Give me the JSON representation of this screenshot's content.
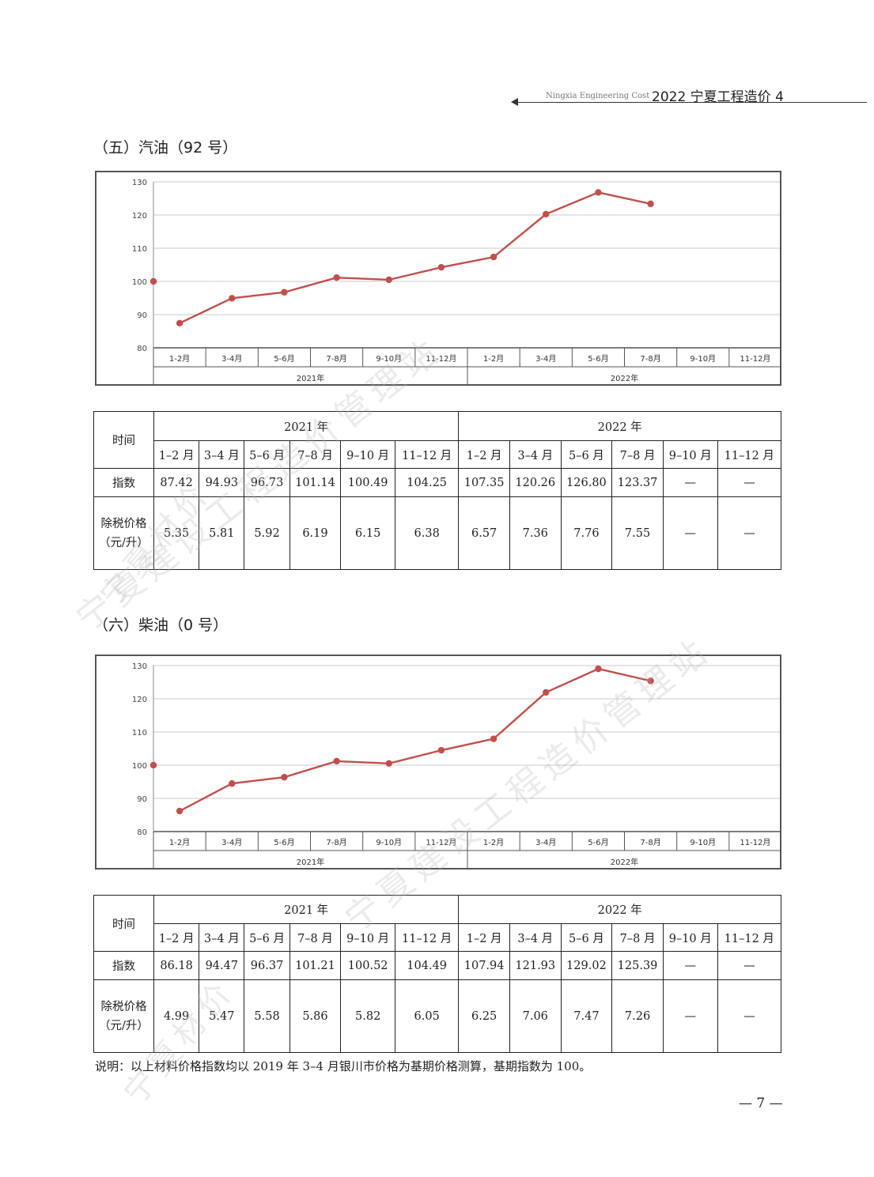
{
  "header": {
    "en": "Ningxia Engineering Cost",
    "cn": "2022 宁夏工程造价 4"
  },
  "sections": [
    {
      "title": "（五）汽油（92 号）",
      "chart_data": {
        "type": "line",
        "categories": [
          "1-2月",
          "3-4月",
          "5-6月",
          "7-8月",
          "9-10月",
          "11-12月",
          "1-2月",
          "3-4月",
          "5-6月",
          "7-8月",
          "9-10月",
          "11-12月"
        ],
        "groups": [
          "2021年",
          "2022年"
        ],
        "baseline": 100,
        "series": [
          {
            "values": [
              87.42,
              94.93,
              96.73,
              101.14,
              100.49,
              104.25,
              107.35,
              120.26,
              126.8,
              123.37,
              null,
              null
            ]
          }
        ],
        "ylim": [
          80,
          130
        ],
        "yticks": [
          80,
          90,
          100,
          110,
          120,
          130
        ],
        "color": "#c0504d"
      },
      "table": {
        "label_time": "时间",
        "label_index": "指数",
        "label_price": "除税价格（元/升）",
        "years": [
          "2021 年",
          "2022 年"
        ],
        "months": [
          "1–2 月",
          "3–4 月",
          "5–6 月",
          "7–8 月",
          "9–10 月",
          "11–12 月",
          "1–2 月",
          "3–4 月",
          "5–6 月",
          "7–8 月",
          "9–10 月",
          "11–12 月"
        ],
        "index": [
          "87.42",
          "94.93",
          "96.73",
          "101.14",
          "100.49",
          "104.25",
          "107.35",
          "120.26",
          "126.80",
          "123.37",
          "—",
          "—"
        ],
        "price": [
          "5.35",
          "5.81",
          "5.92",
          "6.19",
          "6.15",
          "6.38",
          "6.57",
          "7.36",
          "7.76",
          "7.55",
          "—",
          "—"
        ]
      }
    },
    {
      "title": "（六）柴油（0 号）",
      "chart_data": {
        "type": "line",
        "categories": [
          "1-2月",
          "3-4月",
          "5-6月",
          "7-8月",
          "9-10月",
          "11-12月",
          "1-2月",
          "3-4月",
          "5-6月",
          "7-8月",
          "9-10月",
          "11-12月"
        ],
        "groups": [
          "2021年",
          "2022年"
        ],
        "baseline": 100,
        "series": [
          {
            "values": [
              86.18,
              94.47,
              96.37,
              101.21,
              100.52,
              104.49,
              107.94,
              121.93,
              129.02,
              125.39,
              null,
              null
            ]
          }
        ],
        "ylim": [
          80,
          130
        ],
        "yticks": [
          80,
          90,
          100,
          110,
          120,
          130
        ],
        "color": "#c0504d"
      },
      "table": {
        "label_time": "时间",
        "label_index": "指数",
        "label_price": "除税价格（元/升）",
        "years": [
          "2021 年",
          "2022 年"
        ],
        "months": [
          "1–2 月",
          "3–4 月",
          "5–6 月",
          "7–8 月",
          "9–10 月",
          "11–12 月",
          "1–2 月",
          "3–4 月",
          "5–6 月",
          "7–8 月",
          "9–10 月",
          "11–12 月"
        ],
        "index": [
          "86.18",
          "94.47",
          "96.37",
          "101.21",
          "100.52",
          "104.49",
          "107.94",
          "121.93",
          "129.02",
          "125.39",
          "—",
          "—"
        ],
        "price": [
          "4.99",
          "5.47",
          "5.58",
          "5.86",
          "5.82",
          "6.05",
          "6.25",
          "7.06",
          "7.47",
          "7.26",
          "—",
          "—"
        ]
      }
    }
  ],
  "note": "说明：以上材料价格指数均以 2019 年 3–4 月银川市价格为基期价格测算，基期指数为 100。",
  "page_number": "— 7 —",
  "watermarks": [
    "宁夏建设工程造价管理站",
    "宁夏建设工程造价管理站",
    "宁夏材价",
    "宁夏材价"
  ]
}
